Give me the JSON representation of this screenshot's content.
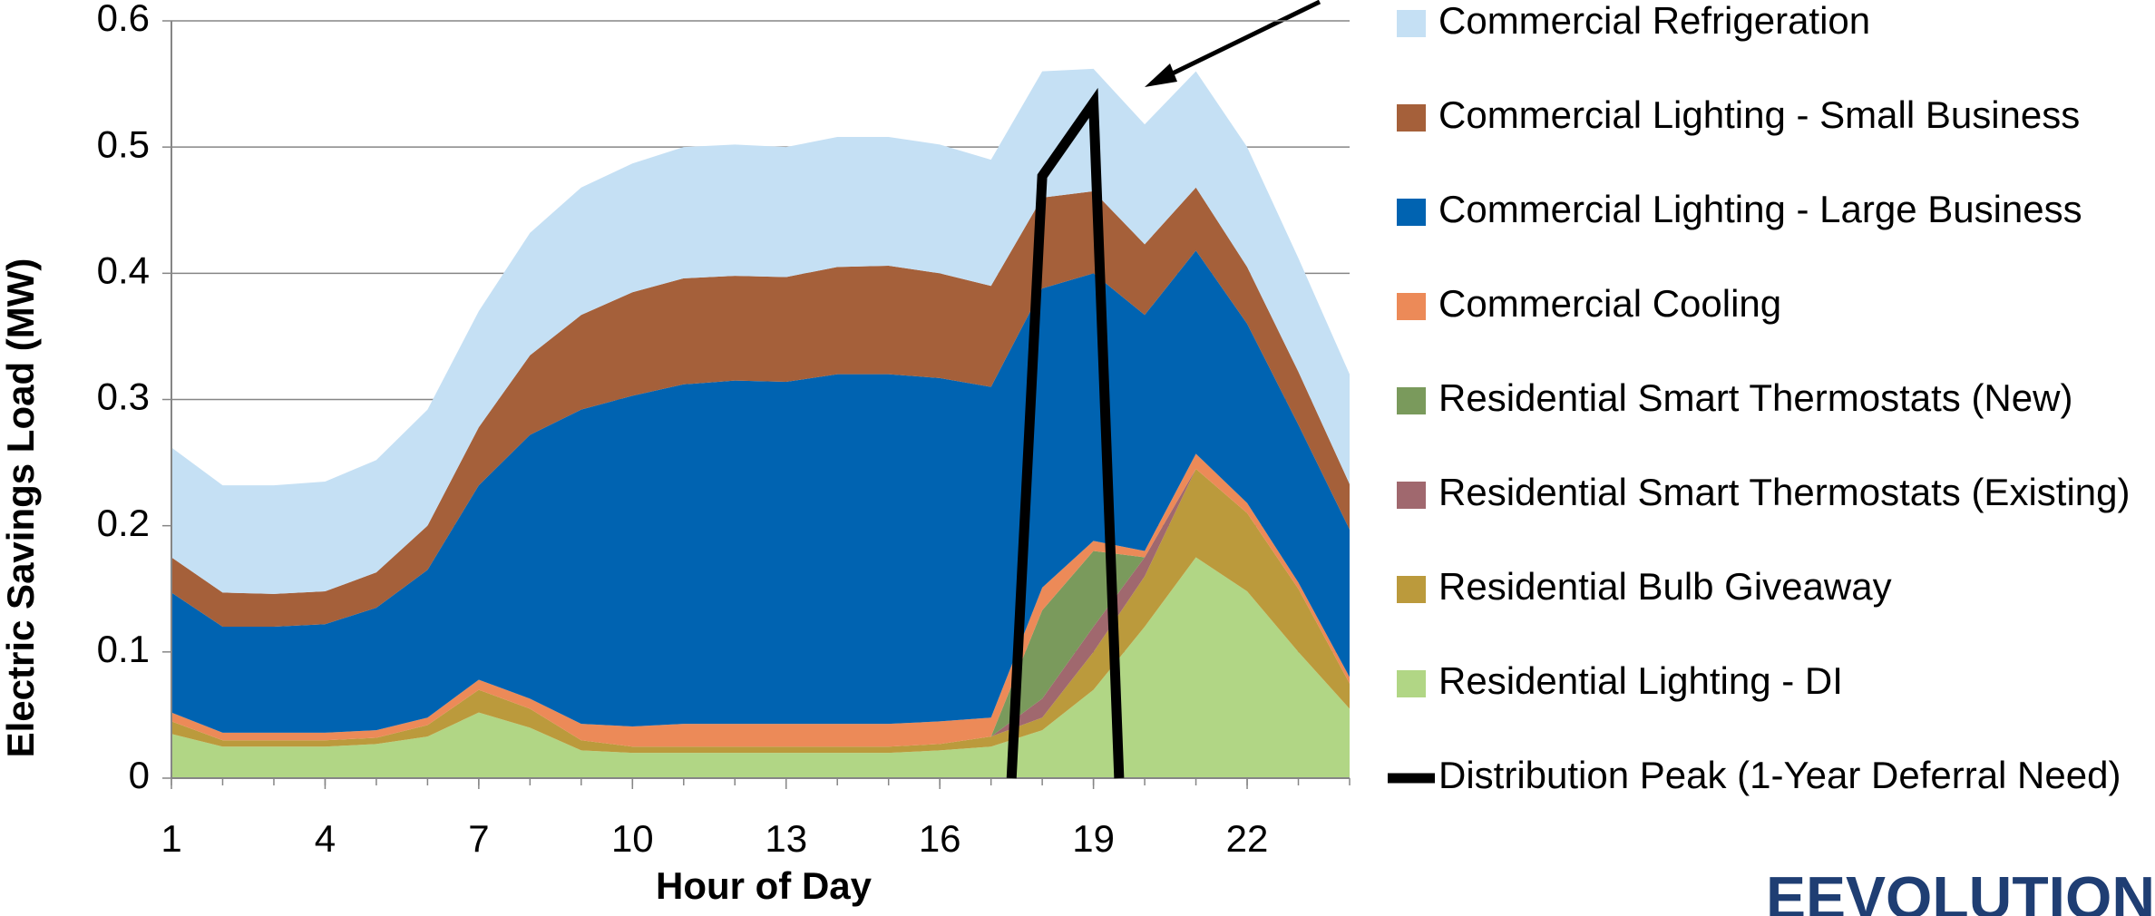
{
  "chart_data": {
    "type": "area",
    "x_label": "Hour of Day",
    "y_label": "Electric Savings Load (MW)",
    "x": [
      1,
      2,
      3,
      4,
      5,
      6,
      7,
      8,
      9,
      10,
      11,
      12,
      13,
      14,
      15,
      16,
      17,
      18,
      19,
      20,
      21,
      22,
      23,
      24
    ],
    "xlim": [
      1,
      24
    ],
    "xticks": [
      1,
      4,
      7,
      10,
      13,
      16,
      19,
      22
    ],
    "ylim": [
      0,
      0.6
    ],
    "yticks": [
      0,
      0.1,
      0.2,
      0.3,
      0.4,
      0.5,
      0.6
    ],
    "grid": true,
    "stacked": true,
    "legend": "right",
    "logo": "EEVOLUTION",
    "series": [
      {
        "name": "Commercial Refrigeration",
        "color": "#c5e0f4",
        "values": [
          0.087,
          0.085,
          0.086,
          0.087,
          0.089,
          0.092,
          0.092,
          0.097,
          0.101,
          0.102,
          0.104,
          0.104,
          0.103,
          0.103,
          0.102,
          0.102,
          0.1,
          0.1,
          0.097,
          0.095,
          0.092,
          0.095,
          0.09,
          0.087
        ]
      },
      {
        "name": "Commercial Lighting - Small Business",
        "color": "#a5603a",
        "values": [
          0.028,
          0.027,
          0.026,
          0.026,
          0.028,
          0.035,
          0.046,
          0.063,
          0.075,
          0.082,
          0.084,
          0.083,
          0.083,
          0.085,
          0.086,
          0.083,
          0.08,
          0.072,
          0.065,
          0.056,
          0.05,
          0.045,
          0.042,
          0.036
        ]
      },
      {
        "name": "Commercial Lighting - Large Business",
        "color": "#0063b1",
        "values": [
          0.095,
          0.084,
          0.084,
          0.086,
          0.097,
          0.117,
          0.154,
          0.209,
          0.249,
          0.262,
          0.269,
          0.272,
          0.271,
          0.277,
          0.277,
          0.272,
          0.262,
          0.237,
          0.212,
          0.187,
          0.161,
          0.142,
          0.125,
          0.117
        ]
      },
      {
        "name": "Commercial Cooling",
        "color": "#ec8a58",
        "values": [
          0.007,
          0.006,
          0.006,
          0.006,
          0.006,
          0.006,
          0.008,
          0.008,
          0.013,
          0.016,
          0.018,
          0.018,
          0.018,
          0.018,
          0.018,
          0.018,
          0.015,
          0.018,
          0.008,
          0.005,
          0.012,
          0.008,
          0.005,
          0.005
        ]
      },
      {
        "name": "Residential Smart Thermostats (New)",
        "color": "#7a9a5c",
        "values": [
          0,
          0,
          0,
          0,
          0,
          0,
          0,
          0,
          0,
          0,
          0,
          0,
          0,
          0,
          0,
          0,
          0,
          0.07,
          0.06,
          0,
          0,
          0,
          0,
          0
        ]
      },
      {
        "name": "Residential Smart Thermostats (Existing)",
        "color": "#a0686e",
        "values": [
          0,
          0,
          0,
          0,
          0,
          0,
          0,
          0,
          0,
          0,
          0,
          0,
          0,
          0,
          0,
          0,
          0,
          0.015,
          0.02,
          0.015,
          0,
          0,
          0,
          0
        ]
      },
      {
        "name": "Residential Bulb Giveaway",
        "color": "#bb9a3c",
        "values": [
          0.01,
          0.005,
          0.005,
          0.005,
          0.005,
          0.009,
          0.018,
          0.015,
          0.008,
          0.005,
          0.005,
          0.005,
          0.005,
          0.005,
          0.005,
          0.005,
          0.008,
          0.01,
          0.03,
          0.04,
          0.07,
          0.062,
          0.05,
          0.02
        ]
      },
      {
        "name": "Residential Lighting - DI",
        "color": "#b1d685",
        "values": [
          0.035,
          0.025,
          0.025,
          0.025,
          0.027,
          0.033,
          0.052,
          0.04,
          0.022,
          0.02,
          0.02,
          0.02,
          0.02,
          0.02,
          0.02,
          0.022,
          0.025,
          0.038,
          0.07,
          0.12,
          0.175,
          0.148,
          0.1,
          0.055
        ]
      },
      {
        "name": "Distribution Peak (1-Year Deferral Need)",
        "color": "#000000",
        "type": "line",
        "x": [
          17.4,
          18,
          19,
          19.5
        ],
        "values": [
          0,
          0.477,
          0.535,
          0
        ]
      }
    ]
  }
}
